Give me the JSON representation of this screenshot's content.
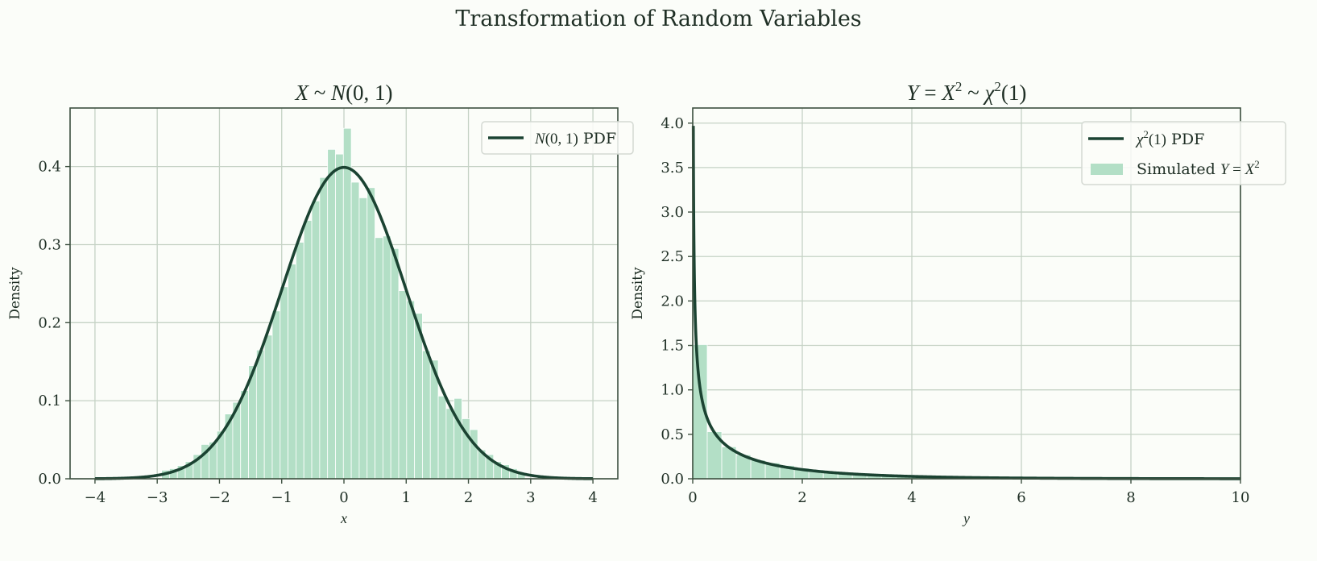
{
  "figure": {
    "suptitle": "Transformation of Random Variables",
    "background": "#fbfdf9",
    "line_color": "#1b4332",
    "bar_color": "#b3dfc6",
    "grid_color": "#c5d2c5",
    "spine_color": "#3d5040"
  },
  "chart_data": [
    {
      "type": "bar",
      "subtype": "histogram_with_pdf",
      "title": "X ~ N(0,1)",
      "title_parts": {
        "a": "X",
        "op": "~",
        "b": "N(0, 1)"
      },
      "xlabel": "x",
      "ylabel": "Density",
      "xlim": [
        -4.4,
        4.4
      ],
      "ylim": [
        0,
        0.475
      ],
      "xticks": [
        -4,
        -3,
        -2,
        -1,
        0,
        1,
        2,
        3,
        4
      ],
      "xtick_labels": [
        "−4",
        "−3",
        "−2",
        "−1",
        "0",
        "1",
        "2",
        "3",
        "4"
      ],
      "yticks": [
        0.0,
        0.1,
        0.2,
        0.3,
        0.4
      ],
      "ytick_labels": [
        "0.0",
        "0.1",
        "0.2",
        "0.3",
        "0.4"
      ],
      "grid": true,
      "legend": {
        "position": "upper right",
        "entries": [
          {
            "label": "N(0,1) PDF",
            "type": "line"
          }
        ]
      },
      "histogram": {
        "bin_start": -2.93,
        "bin_width": 0.127,
        "densities": [
          0.011,
          0.013,
          0.017,
          0.022,
          0.031,
          0.044,
          0.047,
          0.061,
          0.083,
          0.098,
          0.113,
          0.145,
          0.165,
          0.184,
          0.215,
          0.246,
          0.275,
          0.303,
          0.331,
          0.356,
          0.386,
          0.422,
          0.416,
          0.449,
          0.38,
          0.36,
          0.373,
          0.309,
          0.311,
          0.295,
          0.241,
          0.228,
          0.212,
          0.164,
          0.152,
          0.106,
          0.09,
          0.103,
          0.077,
          0.063,
          0.037,
          0.031,
          0.022,
          0.018,
          0.013,
          0.008
        ]
      },
      "pdf": {
        "label": "N(0,1) PDF",
        "x_range": [
          -4,
          4
        ],
        "function": "standard_normal",
        "peak": 0.399
      }
    },
    {
      "type": "bar",
      "subtype": "histogram_with_pdf",
      "title": "Y = X² ~ χ²(1)",
      "title_parts": {
        "a": "Y",
        "eq": "=",
        "b": "X",
        "sup1": "2",
        "op": "~",
        "c": "χ",
        "sup2": "2",
        "d": "(1)"
      },
      "xlabel": "y",
      "ylabel": "Density",
      "xlim": [
        0,
        10
      ],
      "ylim": [
        0,
        4.17
      ],
      "xticks": [
        0,
        2,
        4,
        6,
        8,
        10
      ],
      "xtick_labels": [
        "0",
        "2",
        "4",
        "6",
        "8",
        "10"
      ],
      "yticks": [
        0.0,
        0.5,
        1.0,
        1.5,
        2.0,
        2.5,
        3.0,
        3.5,
        4.0
      ],
      "ytick_labels": [
        "0.0",
        "0.5",
        "1.0",
        "1.5",
        "2.0",
        "2.5",
        "3.0",
        "3.5",
        "4.0"
      ],
      "grid": true,
      "legend": {
        "position": "upper right",
        "entries": [
          {
            "label": "χ²(1) PDF",
            "type": "line"
          },
          {
            "label": "Simulated Y = X²",
            "type": "patch"
          }
        ]
      },
      "histogram": {
        "bin_start": 0,
        "bin_width": 0.265,
        "densities": [
          1.51,
          0.53,
          0.36,
          0.27,
          0.21,
          0.18,
          0.15,
          0.12,
          0.1,
          0.085,
          0.072,
          0.06,
          0.05,
          0.042,
          0.036,
          0.03,
          0.026,
          0.022,
          0.019,
          0.016,
          0.014,
          0.012,
          0.01,
          0.009,
          0.008,
          0.007,
          0.006,
          0.005,
          0.004,
          0.004,
          0.003,
          0.003,
          0.002,
          0.002
        ]
      },
      "pdf": {
        "label": "χ²(1) PDF",
        "x_range": [
          0.01,
          10
        ],
        "function": "chi2_df1",
        "max_shown": 4.0
      }
    }
  ],
  "legend_labels": {
    "left_line": {
      "math": "N(0,1)",
      "text": " PDF"
    },
    "right_line": {
      "math": "χ²(1)",
      "text": " PDF"
    },
    "right_patch": {
      "text": "Simulated ",
      "math": "Y = X²"
    }
  }
}
